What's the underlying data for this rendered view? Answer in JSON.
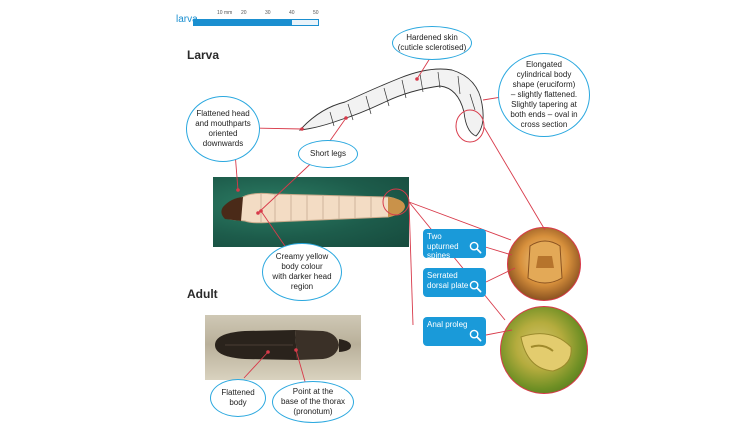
{
  "scale": {
    "label": "larva",
    "ticks": [
      "10 mm",
      "20",
      "30",
      "40",
      "50"
    ]
  },
  "sections": {
    "larva_title": "Larva",
    "adult_title": "Adult"
  },
  "callouts": {
    "hardened_skin": [
      "Hardened skin",
      "(cuticle sclerotised)"
    ],
    "body_shape": [
      "Elongated",
      "cylindrical body",
      "shape (eruciform)",
      "– slightly flattened.",
      "Slightly tapering at",
      "both ends – oval in",
      "cross section"
    ],
    "flattened_head": [
      "Flattened head",
      "and mouthparts",
      "oriented",
      "downwards"
    ],
    "short_legs": [
      "Short legs"
    ],
    "body_colour": [
      "Creamy yellow",
      "body colour",
      "with darker head",
      "region"
    ],
    "flattened_body": [
      "Flattened",
      "body"
    ],
    "pronotum_point": [
      "Point at the",
      "base of the thorax",
      "(pronotum)"
    ]
  },
  "buttons": {
    "upturned_spines": "Two upturned spines",
    "serrated_plate": "Serrated dorsal plate",
    "anal_proleg": "Anal proleg"
  },
  "colors": {
    "accent_blue": "#1a9ad9",
    "leader_red": "#d83a4a"
  },
  "icons": [
    "magnifier-icon"
  ]
}
